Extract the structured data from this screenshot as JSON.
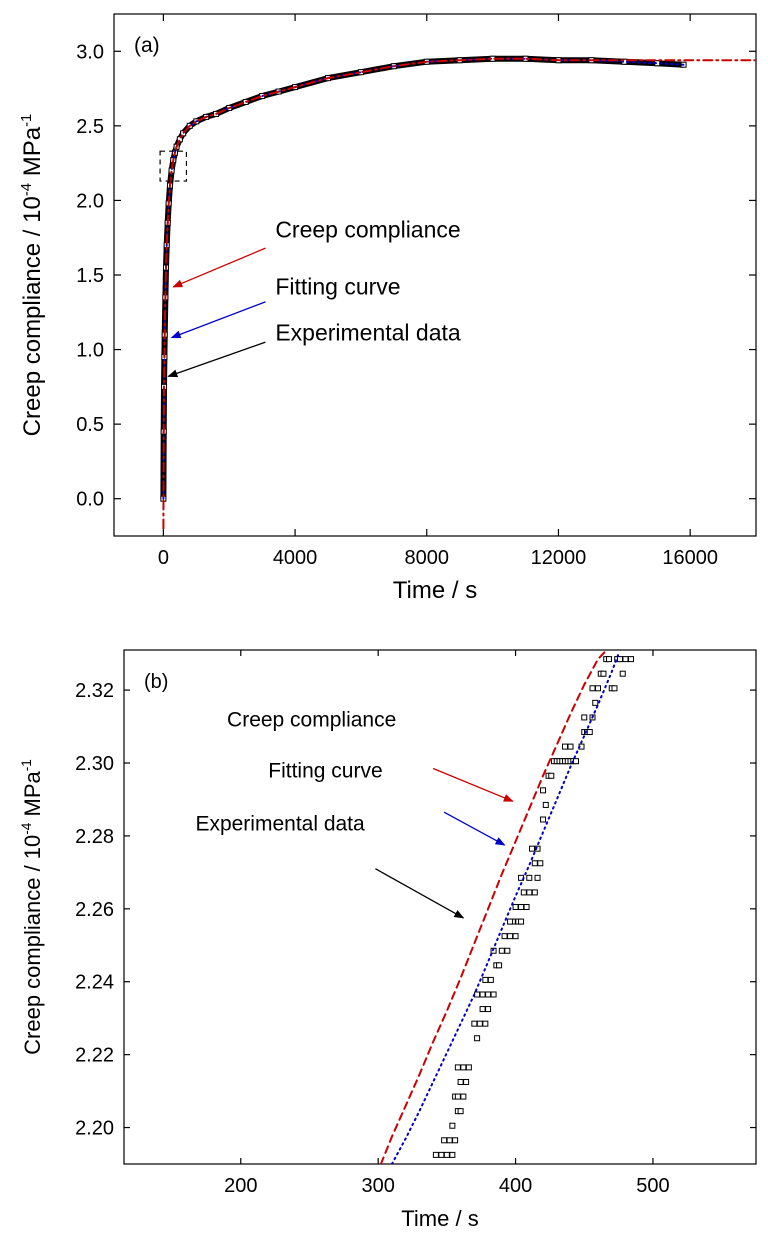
{
  "colors": {
    "creep": "#cc0000",
    "fitting": "#0000cc",
    "experimental": "#000000",
    "axis": "#000000"
  },
  "chart_data": [
    {
      "id": "a",
      "type": "scatter",
      "panel_label": "(a)",
      "xlabel": "Time / s",
      "ylabel": {
        "prefix": "Creep compliance / 10",
        "exp1": "-4",
        "mid": " MPa",
        "exp2": "-1"
      },
      "xlim": [
        -1500,
        18000
      ],
      "ylim": [
        -0.25,
        3.25
      ],
      "xticks": [
        0,
        4000,
        8000,
        12000,
        16000
      ],
      "xtick_labels": [
        "0",
        "4000",
        "8000",
        "12000",
        "16000"
      ],
      "yticks": [
        0.0,
        0.5,
        1.0,
        1.5,
        2.0,
        2.5,
        3.0
      ],
      "ytick_labels": [
        "0.0",
        "0.5",
        "1.0",
        "1.5",
        "2.0",
        "2.5",
        "3.0"
      ],
      "series": [
        {
          "name": "Experimental data",
          "style": "open-square-markers",
          "x": [
            0,
            10,
            20,
            30,
            40,
            60,
            80,
            100,
            130,
            160,
            200,
            250,
            300,
            350,
            400,
            500,
            600,
            800,
            1000,
            1300,
            1600,
            2000,
            2500,
            3000,
            3500,
            4000,
            5000,
            6000,
            7000,
            8000,
            9000,
            10000,
            11000,
            12000,
            13000,
            14000,
            15000,
            15800
          ],
          "y": [
            0.0,
            0.45,
            0.75,
            0.95,
            1.1,
            1.35,
            1.55,
            1.7,
            1.85,
            1.98,
            2.1,
            2.2,
            2.27,
            2.32,
            2.36,
            2.41,
            2.45,
            2.5,
            2.53,
            2.56,
            2.58,
            2.62,
            2.66,
            2.7,
            2.73,
            2.76,
            2.82,
            2.86,
            2.9,
            2.93,
            2.94,
            2.95,
            2.95,
            2.94,
            2.94,
            2.93,
            2.92,
            2.91
          ]
        },
        {
          "name": "Fitting curve",
          "style": "dotted-line",
          "x": [
            0,
            10,
            20,
            30,
            40,
            60,
            80,
            100,
            130,
            160,
            200,
            250,
            300,
            350,
            400,
            500,
            600,
            800,
            1000,
            1300,
            1600,
            2000,
            2500,
            3000,
            3500,
            4000,
            5000,
            6000,
            7000,
            8000,
            9000,
            10000,
            11000,
            12000,
            13000,
            14000,
            15000,
            15800
          ],
          "y": [
            0.0,
            0.45,
            0.75,
            0.95,
            1.1,
            1.35,
            1.55,
            1.7,
            1.85,
            1.98,
            2.1,
            2.2,
            2.27,
            2.32,
            2.36,
            2.41,
            2.45,
            2.5,
            2.53,
            2.56,
            2.58,
            2.62,
            2.66,
            2.7,
            2.73,
            2.76,
            2.82,
            2.86,
            2.9,
            2.93,
            2.94,
            2.95,
            2.95,
            2.94,
            2.94,
            2.93,
            2.92,
            2.91
          ]
        },
        {
          "name": "Creep compliance",
          "style": "dash-dot-line",
          "x": [
            0,
            10,
            20,
            30,
            40,
            60,
            80,
            100,
            130,
            160,
            200,
            250,
            300,
            350,
            400,
            500,
            600,
            800,
            1000,
            1300,
            1600,
            2000,
            2500,
            3000,
            3500,
            4000,
            5000,
            6000,
            7000,
            8000,
            9000,
            10000,
            11000,
            12000,
            13000,
            14000,
            15000,
            16000,
            17000,
            18000
          ],
          "y": [
            -0.2,
            0.45,
            0.75,
            0.95,
            1.1,
            1.35,
            1.55,
            1.7,
            1.85,
            1.98,
            2.1,
            2.2,
            2.27,
            2.32,
            2.36,
            2.41,
            2.45,
            2.5,
            2.53,
            2.56,
            2.58,
            2.62,
            2.66,
            2.7,
            2.73,
            2.76,
            2.82,
            2.86,
            2.9,
            2.93,
            2.94,
            2.95,
            2.95,
            2.94,
            2.94,
            2.94,
            2.94,
            2.94,
            2.94,
            2.94
          ]
        }
      ],
      "annotations": [
        {
          "label": "Creep compliance",
          "color_key": "creep",
          "text_at": [
            3400,
            1.75
          ],
          "arrow_from": [
            3100,
            1.68
          ],
          "arrow_to": [
            300,
            1.42
          ]
        },
        {
          "label": "Fitting curve",
          "color_key": "fitting",
          "text_at": [
            3400,
            1.37
          ],
          "arrow_from": [
            3100,
            1.32
          ],
          "arrow_to": [
            250,
            1.08
          ]
        },
        {
          "label": "Experimental data",
          "color_key": "experimental",
          "text_at": [
            3400,
            1.06
          ],
          "arrow_from": [
            3100,
            1.05
          ],
          "arrow_to": [
            150,
            0.82
          ]
        }
      ],
      "zoom_box": {
        "x": [
          -100,
          700
        ],
        "y": [
          2.13,
          2.33
        ]
      }
    },
    {
      "id": "b",
      "type": "scatter",
      "panel_label": "(b)",
      "xlabel": "Time / s",
      "ylabel": {
        "prefix": "Creep compliance / 10",
        "exp1": "-4",
        "mid": " MPa",
        "exp2": "-1"
      },
      "xlim": [
        115,
        575
      ],
      "ylim": [
        2.19,
        2.331
      ],
      "xticks": [
        200,
        300,
        400,
        500
      ],
      "xtick_labels": [
        "200",
        "300",
        "400",
        "500"
      ],
      "yticks": [
        2.2,
        2.22,
        2.24,
        2.26,
        2.28,
        2.3,
        2.32
      ],
      "ytick_labels": [
        "2.20",
        "2.22",
        "2.24",
        "2.26",
        "2.28",
        "2.30",
        "2.32"
      ],
      "series": [
        {
          "name": "Experimental data",
          "style": "open-square-markers",
          "x": [
            342,
            346,
            350,
            354,
            348,
            352,
            356,
            354,
            358,
            360,
            356,
            358,
            362,
            360,
            364,
            358,
            362,
            366,
            372,
            370,
            374,
            378,
            376,
            380,
            372,
            376,
            380,
            384,
            378,
            382,
            386,
            388,
            384,
            390,
            394,
            392,
            396,
            400,
            398,
            402,
            404,
            396,
            400,
            404,
            408,
            406,
            410,
            414,
            404,
            410,
            416,
            414,
            418,
            412,
            416,
            420,
            422,
            420,
            424,
            426,
            428,
            430,
            432,
            434,
            436,
            438,
            440,
            442,
            444,
            436,
            440,
            448,
            450,
            452,
            454,
            450,
            456,
            458,
            456,
            460,
            462,
            464,
            466,
            468,
            470,
            472,
            474,
            476,
            478,
            480,
            484
          ],
          "y": [
            2.1925,
            2.1925,
            2.1925,
            2.1925,
            2.1965,
            2.1965,
            2.1965,
            2.2005,
            2.2045,
            2.2045,
            2.2085,
            2.2085,
            2.2085,
            2.2125,
            2.2125,
            2.2165,
            2.2165,
            2.2165,
            2.2245,
            2.2285,
            2.2285,
            2.2285,
            2.2325,
            2.2325,
            2.2365,
            2.2365,
            2.2365,
            2.2365,
            2.2405,
            2.2405,
            2.2445,
            2.2445,
            2.2485,
            2.2485,
            2.2485,
            2.2525,
            2.2525,
            2.2525,
            2.2565,
            2.2565,
            2.2565,
            2.2565,
            2.2605,
            2.2605,
            2.2605,
            2.2645,
            2.2645,
            2.2645,
            2.2685,
            2.2685,
            2.2685,
            2.2725,
            2.2725,
            2.2765,
            2.2765,
            2.2845,
            2.2885,
            2.2925,
            2.2965,
            2.2965,
            2.3005,
            2.3005,
            2.3005,
            2.3005,
            2.3005,
            2.3005,
            2.3005,
            2.3005,
            2.3005,
            2.3045,
            2.3045,
            2.3045,
            2.3085,
            2.3085,
            2.3085,
            2.3125,
            2.3125,
            2.3165,
            2.3205,
            2.3205,
            2.3245,
            2.3245,
            2.3285,
            2.3285,
            2.3205,
            2.3205,
            2.3285,
            2.3285,
            2.3245,
            2.3285,
            2.3285
          ]
        },
        {
          "name": "Fitting curve",
          "style": "dotted-line",
          "x": [
            310,
            320,
            330,
            340,
            350,
            360,
            370,
            380,
            390,
            400,
            410,
            420,
            430,
            440,
            450,
            460,
            470,
            475
          ],
          "y": [
            2.19,
            2.197,
            2.2045,
            2.2125,
            2.2205,
            2.2285,
            2.2365,
            2.2455,
            2.2545,
            2.2635,
            2.272,
            2.281,
            2.29,
            2.299,
            2.3075,
            2.316,
            2.325,
            2.33
          ]
        },
        {
          "name": "Creep compliance",
          "style": "dashed-line",
          "x": [
            302,
            310,
            320,
            330,
            340,
            350,
            360,
            370,
            380,
            390,
            400,
            410,
            420,
            430,
            440,
            450,
            460,
            465
          ],
          "y": [
            2.19,
            2.1975,
            2.206,
            2.2145,
            2.2235,
            2.232,
            2.241,
            2.2505,
            2.26,
            2.2695,
            2.2785,
            2.2875,
            2.2965,
            2.305,
            2.3135,
            2.3215,
            2.3285,
            2.3305
          ]
        }
      ],
      "annotations": [
        {
          "label": "Creep compliance",
          "color_key": "creep",
          "text_at": [
            190,
            2.31
          ],
          "arrow_from": [
            340,
            2.2985
          ],
          "arrow_to": [
            398,
            2.2895
          ]
        },
        {
          "label": "Fitting curve",
          "color_key": "fitting",
          "text_at": [
            220,
            2.296
          ],
          "arrow_from": [
            348,
            2.2865
          ],
          "arrow_to": [
            392,
            2.2775
          ]
        },
        {
          "label": "Experimental data",
          "color_key": "experimental",
          "text_at": [
            167,
            2.2815
          ],
          "arrow_from": [
            298,
            2.271
          ],
          "arrow_to": [
            362,
            2.2575
          ]
        }
      ]
    }
  ]
}
